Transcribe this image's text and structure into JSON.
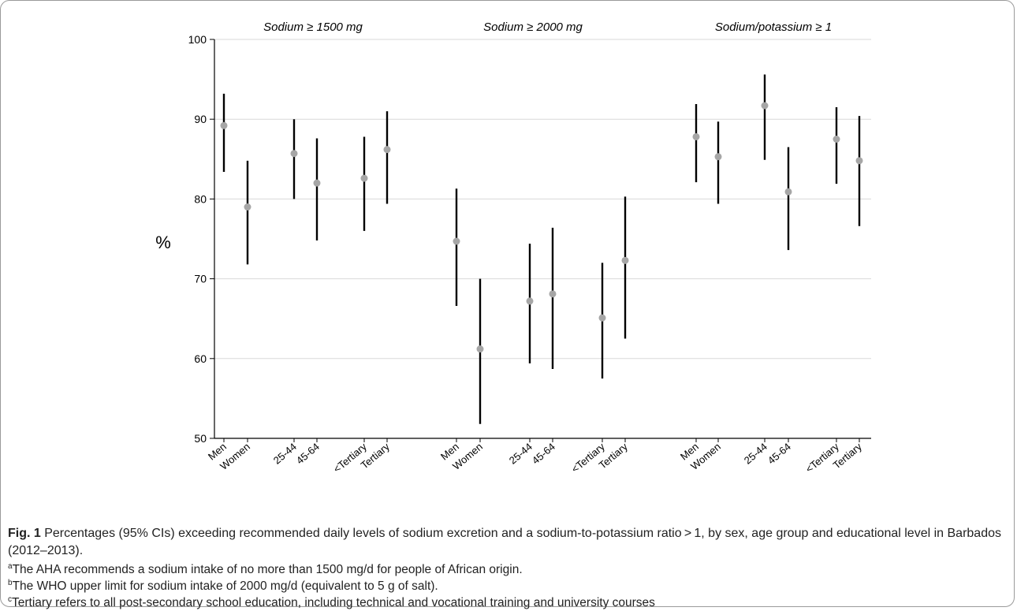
{
  "chart_data": {
    "type": "errorbar",
    "ylabel": "%",
    "ylim": [
      50,
      100
    ],
    "yticks": [
      50,
      60,
      70,
      80,
      90,
      100
    ],
    "grid": true,
    "panels": [
      {
        "title": "Sodium ≥ 1500 mg",
        "categories": [
          "Men",
          "Women",
          "25-44",
          "45-64",
          "<Tertiary",
          "Tertiary"
        ],
        "values": [
          89.2,
          79.0,
          85.7,
          82.0,
          82.6,
          86.2
        ],
        "lower": [
          83.4,
          71.8,
          80.0,
          74.8,
          76.0,
          79.4
        ],
        "upper": [
          93.2,
          84.8,
          90.0,
          87.6,
          87.8,
          91.0
        ]
      },
      {
        "title": "Sodium ≥ 2000 mg",
        "categories": [
          "Men",
          "Women",
          "25-44",
          "45-64",
          "<Tertiary",
          "Tertiary"
        ],
        "values": [
          74.7,
          61.2,
          67.2,
          68.1,
          65.1,
          72.3
        ],
        "lower": [
          66.6,
          51.8,
          59.4,
          58.7,
          57.5,
          62.5
        ],
        "upper": [
          81.3,
          70.0,
          74.4,
          76.4,
          72.0,
          80.3
        ]
      },
      {
        "title": "Sodium/potassium ≥ 1",
        "categories": [
          "Men",
          "Women",
          "25-44",
          "45-64",
          "<Tertiary",
          "Tertiary"
        ],
        "values": [
          87.8,
          85.3,
          91.7,
          80.9,
          87.5,
          84.8
        ],
        "lower": [
          82.1,
          79.4,
          84.9,
          73.6,
          81.9,
          76.6
        ],
        "upper": [
          91.9,
          89.7,
          95.6,
          86.5,
          91.5,
          90.4
        ]
      }
    ]
  },
  "caption": {
    "label": "Fig. 1",
    "text": "Percentages (95% CIs) exceeding recommended daily levels of sodium excretion and a sodium-to-potassium ratio > 1, by sex, age group and educational level in Barbados (2012–2013).",
    "notes": [
      {
        "mark": "a",
        "text": "The AHA recommends a sodium intake of no more than 1500 mg/d for people of African origin."
      },
      {
        "mark": "b",
        "text": "The WHO upper limit for sodium intake of 2000 mg/d (equivalent to 5 g of salt)."
      },
      {
        "mark": "c",
        "text": "Tertiary refers to all post-secondary school education, including technical and vocational training and university courses"
      }
    ]
  },
  "colors": {
    "point": "#a6a6a6",
    "errorbar": "#000000",
    "grid": "#d9d9d9",
    "axis": "#000000"
  }
}
